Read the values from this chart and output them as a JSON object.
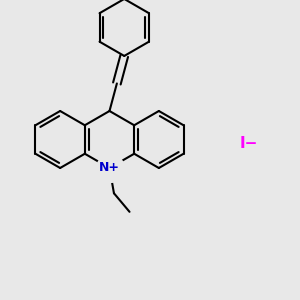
{
  "background_color": "#e8e8e8",
  "bond_color": "#000000",
  "nitrogen_color": "#0000cd",
  "iodide_color": "#ff00ff",
  "bond_width": 1.5,
  "dbo": 0.013,
  "figsize": [
    3.0,
    3.0
  ],
  "dpi": 100,
  "iodide_label": "I−",
  "nitrogen_label": "N",
  "nitrogen_charge": "+"
}
